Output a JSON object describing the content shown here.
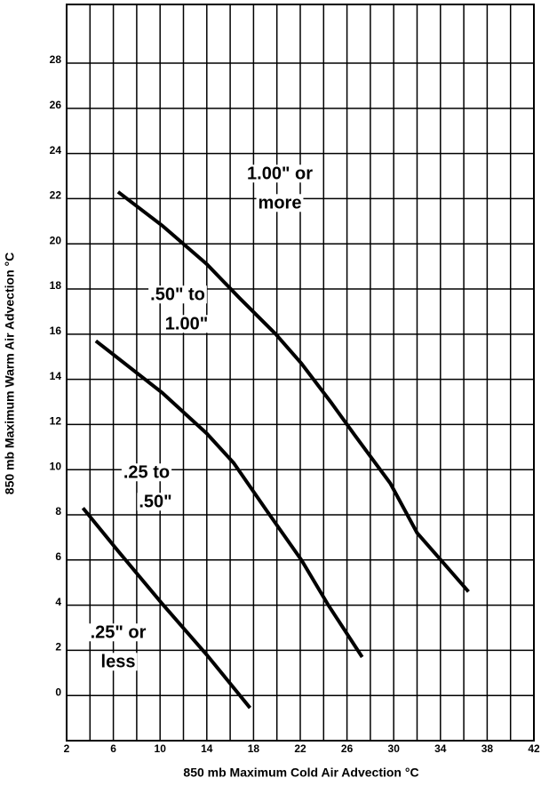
{
  "chart_data": {
    "type": "line",
    "x_label": "850 mb Maximum Cold Air Advection °C",
    "y_label": "850 mb Maximum Warm  Air Advection °C",
    "xlim": [
      2,
      42
    ],
    "ylim": [
      -2,
      30.6
    ],
    "xticks": [
      2,
      6,
      10,
      14,
      18,
      22,
      26,
      30,
      34,
      38,
      42
    ],
    "minor_xticks": [
      4,
      8,
      12,
      16,
      20,
      24,
      28,
      32,
      36,
      40
    ],
    "yticks": [
      0,
      2,
      4,
      6,
      8,
      10,
      12,
      14,
      16,
      18,
      20,
      22,
      24,
      26,
      28
    ],
    "grid": true,
    "series": [
      {
        "color": "#000000",
        "x": [
          3.4,
          6.4,
          10.2,
          14.0,
          17.7
        ],
        "values": [
          8.3,
          6.4,
          4.05,
          1.8,
          -0.55
        ]
      },
      {
        "color": "#000000",
        "x": [
          4.5,
          10.2,
          14.0,
          16.3,
          19.1,
          22.1,
          24.4,
          27.3
        ],
        "values": [
          15.7,
          13.4,
          11.6,
          10.3,
          8.2,
          6.0,
          4.0,
          1.7
        ]
      },
      {
        "color": "#000000",
        "x": [
          6.4,
          10.2,
          14.0,
          16.8,
          19.9,
          22.1,
          24.6,
          26.7,
          29.7,
          32.0,
          36.4
        ],
        "values": [
          22.3,
          20.8,
          19.1,
          17.6,
          16.0,
          14.7,
          13.0,
          11.5,
          9.4,
          7.2,
          4.6
        ]
      }
    ],
    "annotations": [
      {
        "lines": [
          "1.00\" or",
          "more"
        ]
      },
      {
        "lines": [
          ".50\" to",
          "1.00\""
        ]
      },
      {
        "lines": [
          ".25 to",
          ".50\""
        ]
      },
      {
        "lines": [
          ".25\" or",
          "less"
        ]
      }
    ]
  }
}
